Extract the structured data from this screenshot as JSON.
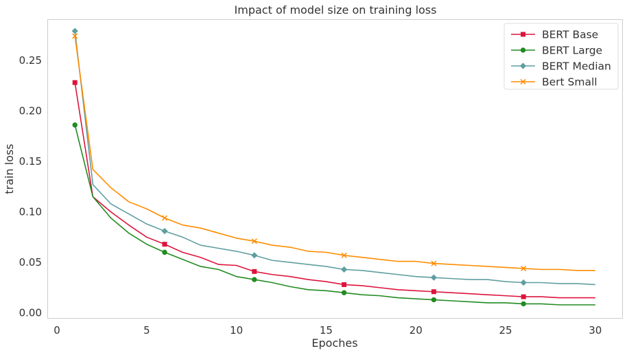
{
  "chart_data": {
    "type": "line",
    "title": "Impact of model size on training loss",
    "xlabel": "Epoches",
    "ylabel": "train loss",
    "xlim": [
      -0.5,
      31.5
    ],
    "ylim": [
      -0.005,
      0.29
    ],
    "xticks": [
      0,
      5,
      10,
      15,
      20,
      25,
      30
    ],
    "yticks": [
      0.0,
      0.05,
      0.1,
      0.15,
      0.2,
      0.25
    ],
    "ytick_labels": [
      "0.00",
      "0.05",
      "0.10",
      "0.15",
      "0.20",
      "0.25"
    ],
    "grid": false,
    "legend_position": "top-right",
    "marker_every": 5,
    "x": [
      1,
      2,
      3,
      4,
      5,
      6,
      7,
      8,
      9,
      10,
      11,
      12,
      13,
      14,
      15,
      16,
      17,
      18,
      19,
      20,
      21,
      22,
      23,
      24,
      25,
      26,
      27,
      28,
      29,
      30
    ],
    "series": [
      {
        "name": "BERT Base",
        "color": "#dc143c",
        "marker": "square",
        "values": [
          0.228,
          0.115,
          0.1,
          0.087,
          0.075,
          0.068,
          0.06,
          0.055,
          0.048,
          0.047,
          0.041,
          0.038,
          0.036,
          0.033,
          0.031,
          0.028,
          0.027,
          0.025,
          0.023,
          0.022,
          0.021,
          0.02,
          0.019,
          0.018,
          0.017,
          0.016,
          0.016,
          0.015,
          0.015,
          0.015
        ]
      },
      {
        "name": "BERT Large",
        "color": "#228b22",
        "marker": "circle",
        "values": [
          0.186,
          0.115,
          0.094,
          0.079,
          0.068,
          0.06,
          0.053,
          0.046,
          0.043,
          0.036,
          0.033,
          0.03,
          0.026,
          0.023,
          0.022,
          0.02,
          0.018,
          0.017,
          0.015,
          0.014,
          0.013,
          0.012,
          0.011,
          0.01,
          0.01,
          0.009,
          0.009,
          0.008,
          0.008,
          0.008
        ]
      },
      {
        "name": "BERT Median",
        "color": "#5f9ea0",
        "marker": "diamond",
        "values": [
          0.279,
          0.127,
          0.108,
          0.098,
          0.088,
          0.081,
          0.075,
          0.067,
          0.064,
          0.061,
          0.057,
          0.052,
          0.05,
          0.048,
          0.046,
          0.043,
          0.042,
          0.04,
          0.038,
          0.036,
          0.035,
          0.034,
          0.033,
          0.033,
          0.031,
          0.03,
          0.03,
          0.029,
          0.029,
          0.028
        ]
      },
      {
        "name": "Bert Small",
        "color": "#ff8c00",
        "marker": "x",
        "values": [
          0.274,
          0.142,
          0.124,
          0.11,
          0.103,
          0.094,
          0.087,
          0.084,
          0.079,
          0.074,
          0.071,
          0.067,
          0.065,
          0.061,
          0.06,
          0.057,
          0.055,
          0.053,
          0.051,
          0.051,
          0.049,
          0.048,
          0.047,
          0.046,
          0.045,
          0.044,
          0.043,
          0.043,
          0.042,
          0.042
        ]
      }
    ]
  }
}
